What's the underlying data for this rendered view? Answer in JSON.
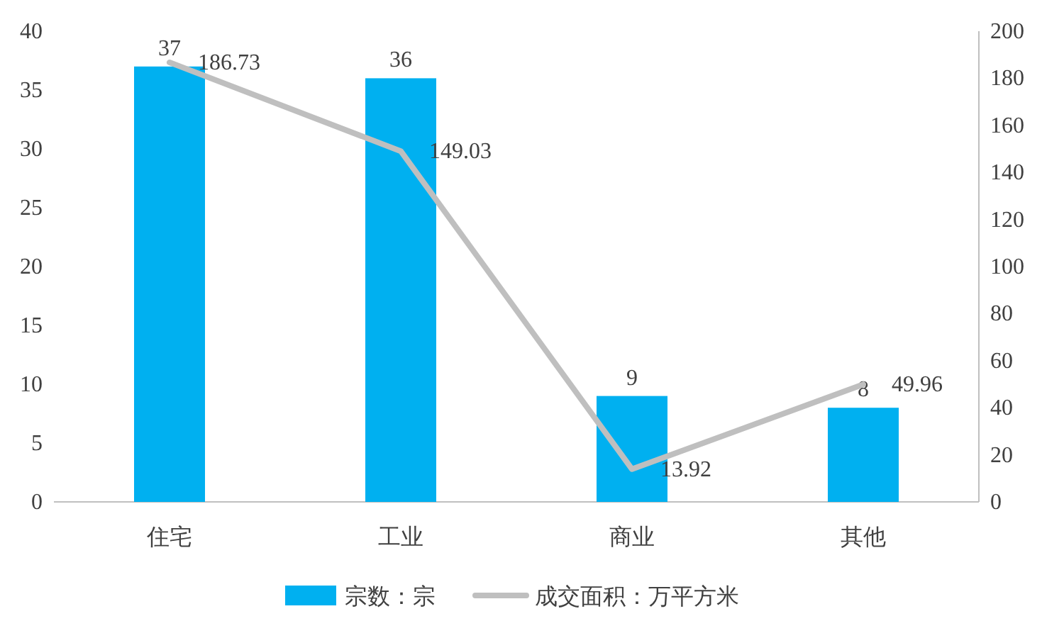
{
  "chart_data": {
    "type": "bar",
    "categories": [
      "住宅",
      "工业",
      "商业",
      "其他"
    ],
    "series": [
      {
        "name": "宗数：宗",
        "color": "#00b0f0",
        "values": [
          37,
          36,
          9,
          8
        ]
      },
      {
        "name": "成交面积：万平方米",
        "type": "line",
        "axis": "y2",
        "color": "#bfbfbf",
        "values": [
          186.73,
          149.03,
          13.92,
          49.96
        ]
      }
    ],
    "ylim": [
      0,
      40
    ],
    "yticks": [
      0,
      5,
      10,
      15,
      20,
      25,
      30,
      35,
      40
    ],
    "y2lim": [
      0,
      200
    ],
    "y2ticks": [
      0,
      20,
      40,
      60,
      80,
      100,
      120,
      140,
      160,
      180,
      200
    ],
    "data_labels": true,
    "legend": "bottom",
    "grid": false
  }
}
